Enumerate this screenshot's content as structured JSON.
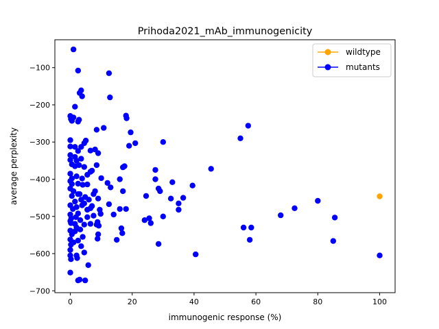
{
  "chart_data": {
    "type": "scatter",
    "title": "Prihoda2021_mAb_immunogenicity",
    "xlabel": "immunogenic response (%)",
    "ylabel": "average perplexity",
    "xlim": [
      -5,
      105
    ],
    "ylim": [
      -705,
      -25
    ],
    "xticks": [
      0,
      20,
      40,
      60,
      80,
      100
    ],
    "xtick_labels": [
      "0",
      "20",
      "40",
      "60",
      "80",
      "100"
    ],
    "yticks": [
      -700,
      -600,
      -500,
      -400,
      -300,
      -200,
      -100
    ],
    "ytick_labels": [
      "−700",
      "−600",
      "−500",
      "−400",
      "−300",
      "−200",
      "−100"
    ],
    "legend_position": "top-right",
    "series": [
      {
        "name": "wildtype",
        "color": "#ffa500",
        "points": [
          [
            100,
            -446
          ]
        ]
      },
      {
        "name": "mutants",
        "color": "#0000ff",
        "points": [
          [
            1,
            -51
          ],
          [
            2.5,
            -108
          ],
          [
            12.5,
            -115
          ],
          [
            3.5,
            -161
          ],
          [
            3,
            -168
          ],
          [
            3.8,
            -177
          ],
          [
            12.8,
            -180
          ],
          [
            1.5,
            -205
          ],
          [
            0,
            -230
          ],
          [
            0.2,
            -238
          ],
          [
            1,
            -234
          ],
          [
            2.8,
            -240
          ],
          [
            2.5,
            -245
          ],
          [
            0.5,
            -243
          ],
          [
            10.8,
            -262
          ],
          [
            8.5,
            -267
          ],
          [
            18,
            -229
          ],
          [
            18.2,
            -236
          ],
          [
            19.5,
            -274
          ],
          [
            57.5,
            -256
          ],
          [
            0,
            -295
          ],
          [
            5,
            -296
          ],
          [
            4.5,
            -303
          ],
          [
            0,
            -312
          ],
          [
            3.5,
            -313
          ],
          [
            2.5,
            -324
          ],
          [
            1.5,
            -313
          ],
          [
            6.5,
            -323
          ],
          [
            8,
            -320
          ],
          [
            9,
            -330
          ],
          [
            19,
            -310
          ],
          [
            21,
            -303
          ],
          [
            30,
            -300
          ],
          [
            55,
            -290
          ],
          [
            0,
            -335
          ],
          [
            0,
            -348
          ],
          [
            1.5,
            -340
          ],
          [
            2,
            -350
          ],
          [
            3.5,
            -345
          ],
          [
            0.5,
            -360
          ],
          [
            1.5,
            -365
          ],
          [
            2.8,
            -362
          ],
          [
            4.5,
            -367
          ],
          [
            8.5,
            -362
          ],
          [
            6.5,
            -380
          ],
          [
            7,
            -377
          ],
          [
            5.5,
            -388
          ],
          [
            17,
            -368
          ],
          [
            17.5,
            -365
          ],
          [
            27.5,
            -375
          ],
          [
            45.5,
            -372
          ],
          [
            0,
            -385
          ],
          [
            0.5,
            -398
          ],
          [
            2,
            -392
          ],
          [
            3.8,
            -398
          ],
          [
            10,
            -397
          ],
          [
            0,
            -405
          ],
          [
            0.5,
            -413
          ],
          [
            2.5,
            -412
          ],
          [
            4,
            -415
          ],
          [
            5.5,
            -414
          ],
          [
            12,
            -410
          ],
          [
            13,
            -422
          ],
          [
            16,
            -400
          ],
          [
            27.5,
            -400
          ],
          [
            33,
            -408
          ],
          [
            39.5,
            -417
          ],
          [
            0,
            -425
          ],
          [
            1,
            -432
          ],
          [
            3,
            -440
          ],
          [
            3.5,
            -455
          ],
          [
            0.5,
            -445
          ],
          [
            1.5,
            -460
          ],
          [
            2.5,
            -440
          ],
          [
            4.8,
            -448
          ],
          [
            6,
            -455
          ],
          [
            7.5,
            -440
          ],
          [
            8,
            -432
          ],
          [
            9,
            -452
          ],
          [
            17,
            -432
          ],
          [
            24.5,
            -445
          ],
          [
            28.5,
            -425
          ],
          [
            29,
            -432
          ],
          [
            32.5,
            -452
          ],
          [
            36.5,
            -450
          ],
          [
            0,
            -470
          ],
          [
            0.8,
            -480
          ],
          [
            2,
            -475
          ],
          [
            3.8,
            -470
          ],
          [
            4.5,
            -465
          ],
          [
            5.5,
            -482
          ],
          [
            6.5,
            -478
          ],
          [
            7,
            -472
          ],
          [
            9.5,
            -482
          ],
          [
            12.5,
            -467
          ],
          [
            14,
            -495
          ],
          [
            16,
            -480
          ],
          [
            18,
            -480
          ],
          [
            35,
            -465
          ],
          [
            35,
            -482
          ],
          [
            0,
            -495
          ],
          [
            0.3,
            -505
          ],
          [
            1.8,
            -502
          ],
          [
            2.5,
            -492
          ],
          [
            3.2,
            -510
          ],
          [
            5.5,
            -502
          ],
          [
            7.5,
            -498
          ],
          [
            9.8,
            -493
          ],
          [
            24,
            -510
          ],
          [
            25.5,
            -505
          ],
          [
            26,
            -518
          ],
          [
            30,
            -500
          ],
          [
            72.5,
            -478
          ],
          [
            80,
            -458
          ],
          [
            0,
            -512
          ],
          [
            0.2,
            -518
          ],
          [
            1.5,
            -520
          ],
          [
            2,
            -530
          ],
          [
            4.5,
            -522
          ],
          [
            6.5,
            -520
          ],
          [
            8.5,
            -522
          ],
          [
            8.8,
            -515
          ],
          [
            9.2,
            -525
          ],
          [
            0,
            -538
          ],
          [
            0.5,
            -548
          ],
          [
            1.5,
            -540
          ],
          [
            3.2,
            -535
          ],
          [
            16.5,
            -532
          ],
          [
            16.8,
            -545
          ],
          [
            56,
            -530
          ],
          [
            58.5,
            -530
          ],
          [
            68,
            -497
          ],
          [
            85.5,
            -503
          ],
          [
            0,
            -562
          ],
          [
            0.2,
            -576
          ],
          [
            1,
            -570
          ],
          [
            2.5,
            -565
          ],
          [
            3.5,
            -580
          ],
          [
            4,
            -555
          ],
          [
            8.8,
            -560
          ],
          [
            9,
            -548
          ],
          [
            15,
            -563
          ],
          [
            28.5,
            -574
          ],
          [
            58,
            -563
          ],
          [
            85,
            -566
          ],
          [
            0,
            -590
          ],
          [
            0,
            -605
          ],
          [
            0.2,
            -615
          ],
          [
            2,
            -605
          ],
          [
            2.2,
            -612
          ],
          [
            4.5,
            -597
          ],
          [
            5.8,
            -631
          ],
          [
            40.5,
            -602
          ],
          [
            100,
            -605
          ],
          [
            0,
            -651
          ],
          [
            2.5,
            -672
          ],
          [
            3,
            -670
          ],
          [
            4.8,
            -672
          ]
        ]
      }
    ]
  }
}
